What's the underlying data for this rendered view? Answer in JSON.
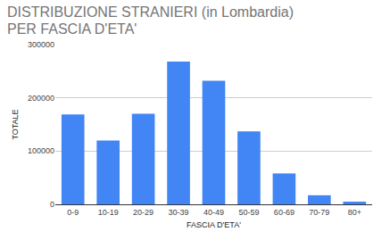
{
  "chart_data": {
    "type": "bar",
    "title": "DISTRIBUZIONE STRANIERI (in Lombardia) PER FASCIA D'ETA'",
    "x_label": "FASCIA D'ETA'",
    "y_label": "TOTALE",
    "categories": [
      "0-9",
      "10-19",
      "20-29",
      "30-39",
      "40-49",
      "50-59",
      "60-69",
      "70-79",
      "80+"
    ],
    "values": [
      169000,
      120000,
      170000,
      268000,
      232000,
      137000,
      58000,
      17000,
      5000
    ],
    "color": "#4285f4",
    "ylim": [
      0,
      300000
    ],
    "yticks": [
      0,
      100000,
      200000,
      300000
    ],
    "grid": true
  }
}
